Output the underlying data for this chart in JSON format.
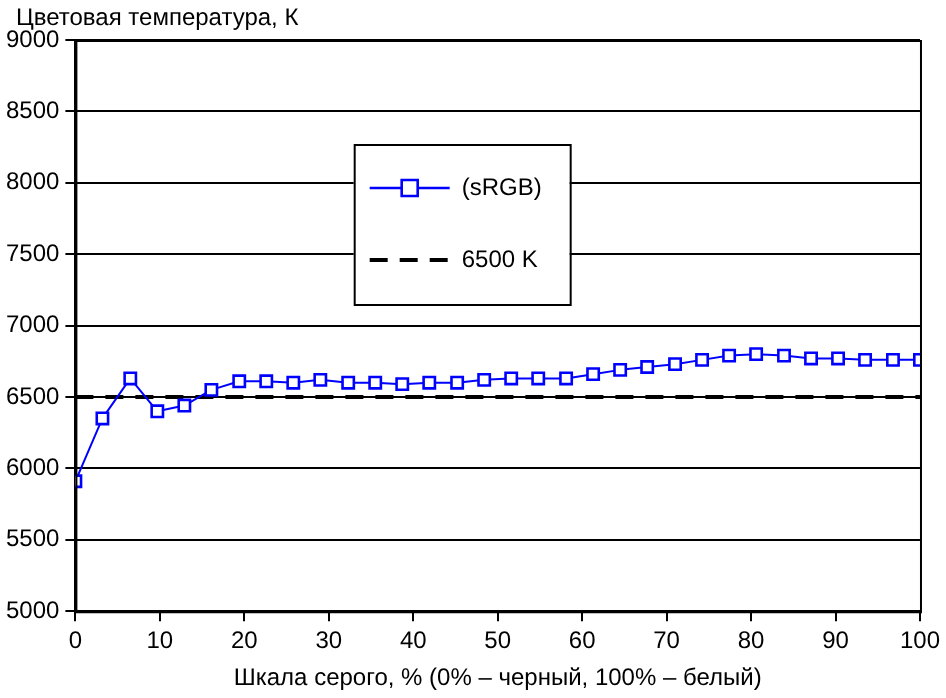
{
  "chart_data": {
    "type": "line",
    "xlabel": "Шкала серого, % (0% – черный, 100% – белый)",
    "ylabel": "Цветовая температура, К",
    "x": [
      0,
      3.2,
      6.5,
      9.7,
      12.9,
      16.1,
      19.4,
      22.6,
      25.8,
      29,
      32.3,
      35.5,
      38.7,
      41.9,
      45.2,
      48.4,
      51.6,
      54.8,
      58.1,
      61.3,
      64.5,
      67.7,
      71,
      74.2,
      77.4,
      80.6,
      83.9,
      87.1,
      90.3,
      93.5,
      96.8,
      100
    ],
    "series": [
      {
        "name": "(sRGB)",
        "color": "#0000ff",
        "values": [
          5910,
          6350,
          6630,
          6400,
          6440,
          6550,
          6610,
          6610,
          6600,
          6620,
          6600,
          6600,
          6590,
          6600,
          6600,
          6620,
          6630,
          6630,
          6630,
          6660,
          6690,
          6710,
          6730,
          6760,
          6790,
          6800,
          6790,
          6770,
          6770,
          6760,
          6760,
          6760
        ]
      }
    ],
    "ref_lines": [
      {
        "axis": "y",
        "value": 6500,
        "label": "6500 K",
        "color": "#000000",
        "line_style": "dashed"
      }
    ],
    "xlim": [
      0,
      100
    ],
    "xticks": [
      0,
      10,
      20,
      30,
      40,
      50,
      60,
      70,
      80,
      90,
      100
    ],
    "ylim": [
      5000,
      9000
    ],
    "yticks": [
      5000,
      5500,
      6000,
      6500,
      7000,
      7500,
      8000,
      8500,
      9000
    ],
    "grid": "y",
    "legend": "top",
    "marker": "square",
    "line_style": "solid"
  }
}
